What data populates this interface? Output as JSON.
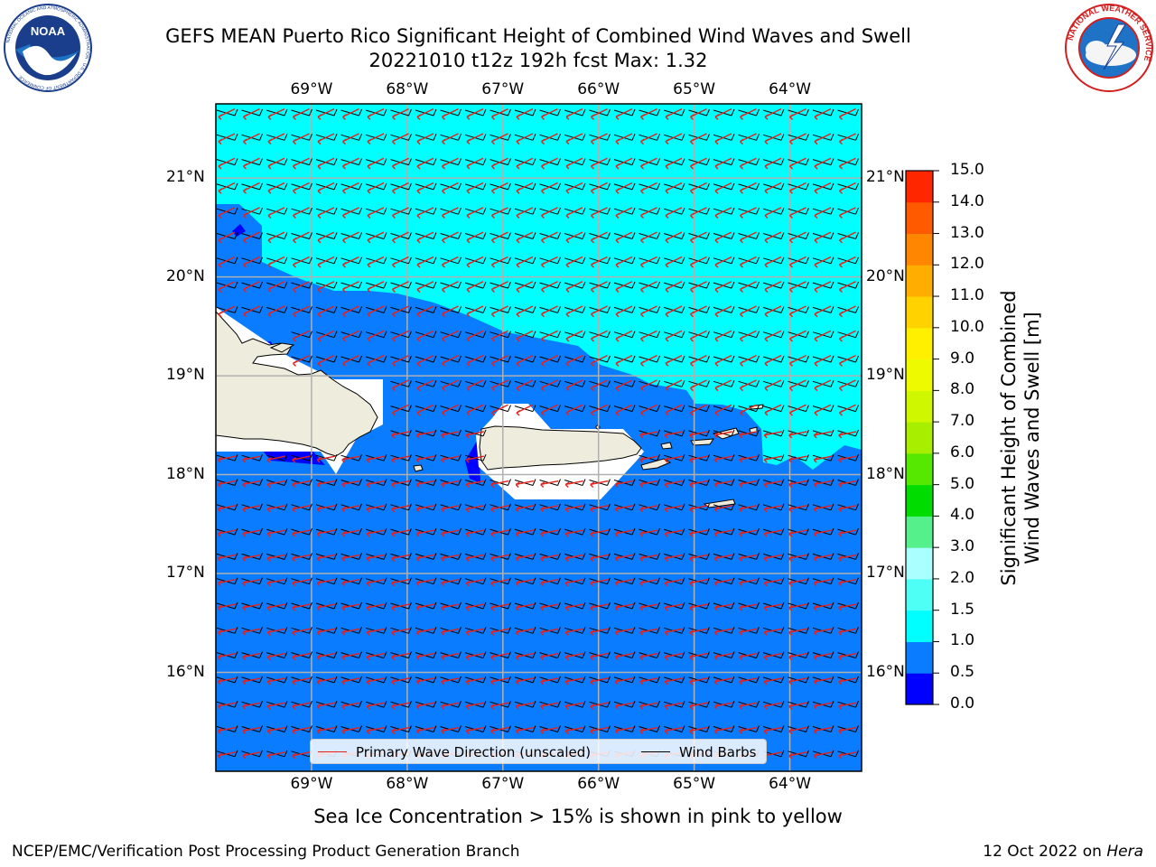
{
  "header": {
    "title_line1": "GEFS MEAN Puerto Rico Significant Height of Combined Wind Waves and Swell",
    "title_line2": "20221010 t12z 192h fcst   Max: 1.32"
  },
  "logos": {
    "noaa_text": "NOAA",
    "noaa_ring_text": "NATIONAL OCEANIC AND ATMOSPHERIC ADMINISTRATION · U.S. DEPARTMENT OF COMMERCE",
    "nws_ring_text": "NATIONAL WEATHER SERVICE"
  },
  "map": {
    "lon_labels": [
      "69°W",
      "68°W",
      "67°W",
      "66°W",
      "65°W",
      "64°W"
    ],
    "lat_labels": [
      "21°N",
      "20°N",
      "19°N",
      "18°N",
      "17°N",
      "16°N"
    ],
    "lon_values": [
      -69,
      -68,
      -67,
      -66,
      -65,
      -64
    ],
    "lat_values": [
      21,
      20,
      19,
      18,
      17,
      16
    ],
    "extent": {
      "lon_min": -70.0,
      "lon_max": -63.25,
      "lat_min": 15.0,
      "lat_max": 21.75
    },
    "land_color": "#eeecdc",
    "gridlines": true,
    "wave_direction_color": "#e8201a",
    "wind_barb_color": "#000000"
  },
  "legend": {
    "wave_label": "Primary Wave Direction (unscaled)",
    "barb_label": "Wind Barbs"
  },
  "colorbar": {
    "label": "Significant Height of Combined\nWind Waves and Swell [m]",
    "ticks": [
      "0.0",
      "0.5",
      "1.0",
      "1.5",
      "2.0",
      "3.0",
      "4.0",
      "5.0",
      "6.0",
      "7.0",
      "8.0",
      "9.0",
      "10.0",
      "11.0",
      "12.0",
      "13.0",
      "14.0",
      "15.0"
    ],
    "colors": [
      "#0000ff",
      "#0a7cff",
      "#00ffff",
      "#4dfff5",
      "#aaffff",
      "#55f08c",
      "#00dc00",
      "#56e800",
      "#a8ee00",
      "#cff700",
      "#eefb00",
      "#fff000",
      "#ffd200",
      "#ffae00",
      "#ff8600",
      "#ff5a00",
      "#ff2600"
    ]
  },
  "footer": {
    "ice_note": "Sea Ice Concentration > 15% is shown in pink to yellow",
    "left": "NCEP/EMC/Verification Post Processing Product Generation Branch",
    "right_prefix": "12 Oct 2022 on ",
    "right_machine": "Hera"
  }
}
